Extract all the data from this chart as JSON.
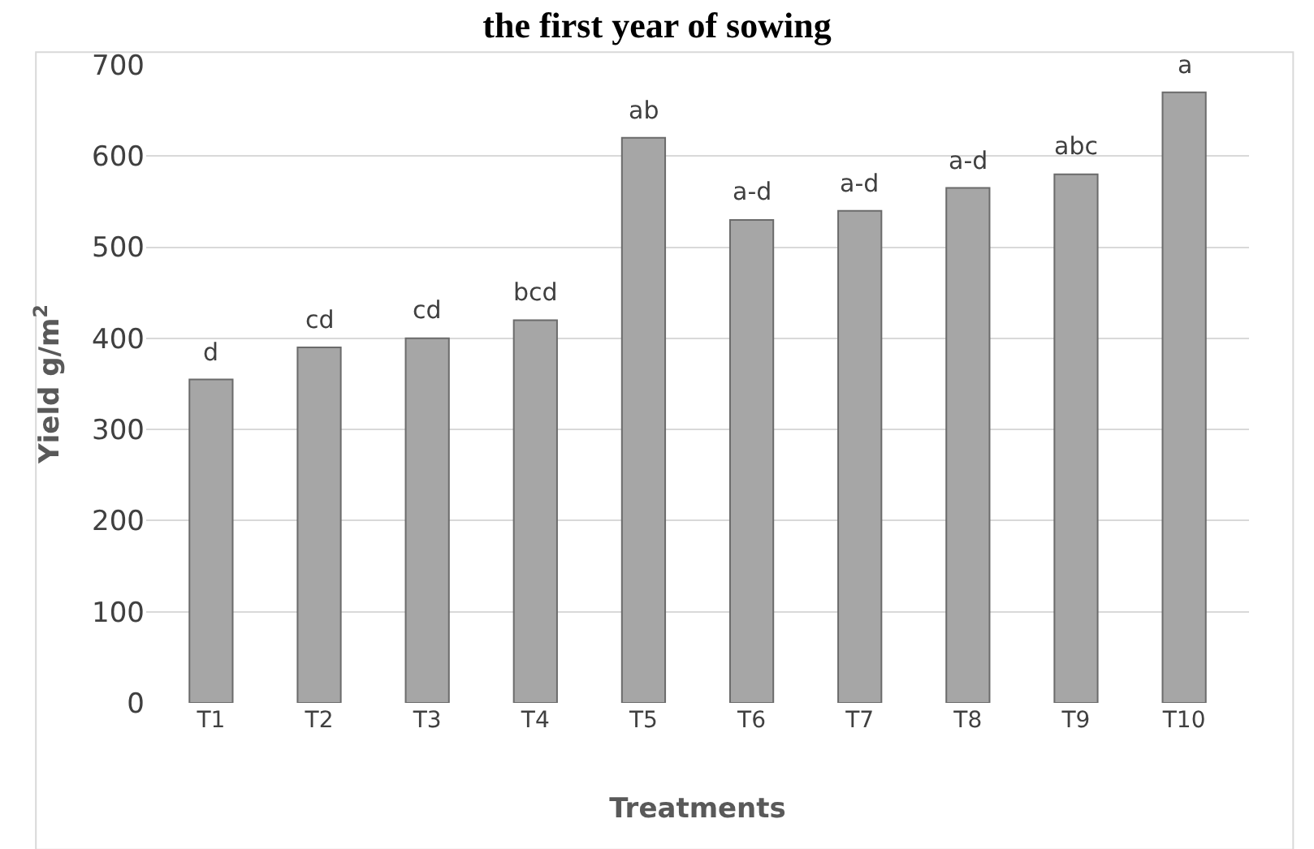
{
  "chart_data": {
    "type": "bar",
    "title": "the first year of sowing",
    "xlabel": "Treatments",
    "ylabel": "Yield g/m$^{2}$",
    "categories": [
      "T1",
      "T2",
      "T3",
      "T4",
      "T5",
      "T6",
      "T7",
      "T8",
      "T9",
      "T10"
    ],
    "values": [
      355,
      390,
      400,
      420,
      620,
      530,
      540,
      565,
      580,
      670
    ],
    "color": "#a6a6a6",
    "ylim": [
      0,
      700
    ],
    "yticks": [
      0,
      100,
      200,
      300,
      400,
      500,
      600,
      700
    ],
    "grid": "y",
    "legend": false,
    "annotations": [
      {
        "text": "d",
        "x": "T1",
        "y": 355
      },
      {
        "text": "cd",
        "x": "T2",
        "y": 390
      },
      {
        "text": "cd",
        "x": "T3",
        "y": 400
      },
      {
        "text": "bcd",
        "x": "T4",
        "y": 420
      },
      {
        "text": "ab",
        "x": "T5",
        "y": 620
      },
      {
        "text": "a-d",
        "x": "T6",
        "y": 530
      },
      {
        "text": "a-d",
        "x": "T7",
        "y": 540
      },
      {
        "text": "a-d",
        "x": "T8",
        "y": 565
      },
      {
        "text": "abc",
        "x": "T9",
        "y": 580
      },
      {
        "text": "a",
        "x": "T10",
        "y": 670
      }
    ]
  }
}
